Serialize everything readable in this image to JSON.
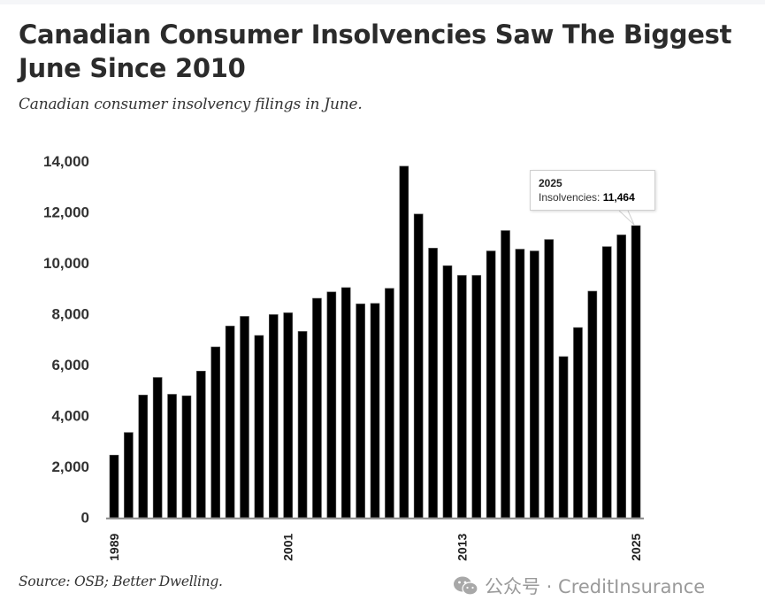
{
  "header": {
    "title": "Canadian Consumer Insolvencies Saw The Biggest June Since 2010",
    "subtitle": "Canadian consumer insolvency filings in June."
  },
  "footer": {
    "source": "Source: OSB; Better Dwelling.",
    "watermark": "公众号 · CreditInsurance",
    "watermark_icon": "wechat-icon"
  },
  "tooltip": {
    "year": "2025",
    "label": "Insolvencies: ",
    "value": "11,464"
  },
  "colors": {
    "bar": "#000000",
    "axis": "#888888",
    "text": "#333333"
  },
  "chart_data": {
    "type": "bar",
    "title": "Canadian Consumer Insolvencies Saw The Biggest June Since 2010",
    "subtitle": "Canadian consumer insolvency filings in June.",
    "xlabel": "",
    "ylabel": "",
    "series_name": "Insolvencies",
    "ylim": [
      0,
      14000
    ],
    "yticks": [
      0,
      2000,
      4000,
      6000,
      8000,
      10000,
      12000,
      14000
    ],
    "ytick_labels": [
      "0",
      "2,000",
      "4,000",
      "6,000",
      "8,000",
      "10,000",
      "12,000",
      "14,000"
    ],
    "xtick_labels": [
      "1989",
      "2001",
      "2013",
      "2025"
    ],
    "grid": false,
    "legend": "none",
    "categories": [
      "1989",
      "1990",
      "1991",
      "1992",
      "1993",
      "1994",
      "1995",
      "1996",
      "1997",
      "1998",
      "1999",
      "2000",
      "2001",
      "2002",
      "2003",
      "2004",
      "2005",
      "2006",
      "2007",
      "2008",
      "2009",
      "2010",
      "2011",
      "2012",
      "2013",
      "2014",
      "2015",
      "2016",
      "2017",
      "2018",
      "2019",
      "2020",
      "2021",
      "2022",
      "2023",
      "2024",
      "2025"
    ],
    "values": [
      2450,
      3340,
      4810,
      5500,
      4840,
      4780,
      5750,
      6700,
      7520,
      7900,
      7150,
      7970,
      8040,
      7310,
      8610,
      8860,
      9030,
      8390,
      8410,
      9000,
      13800,
      11920,
      10580,
      9890,
      9510,
      9510,
      10470,
      11270,
      10540,
      10470,
      10920,
      6320,
      7460,
      8890,
      10640,
      11100,
      11464
    ],
    "annotations": [
      {
        "category": "2025",
        "text": "2025 Insolvencies: 11,464"
      }
    ]
  }
}
